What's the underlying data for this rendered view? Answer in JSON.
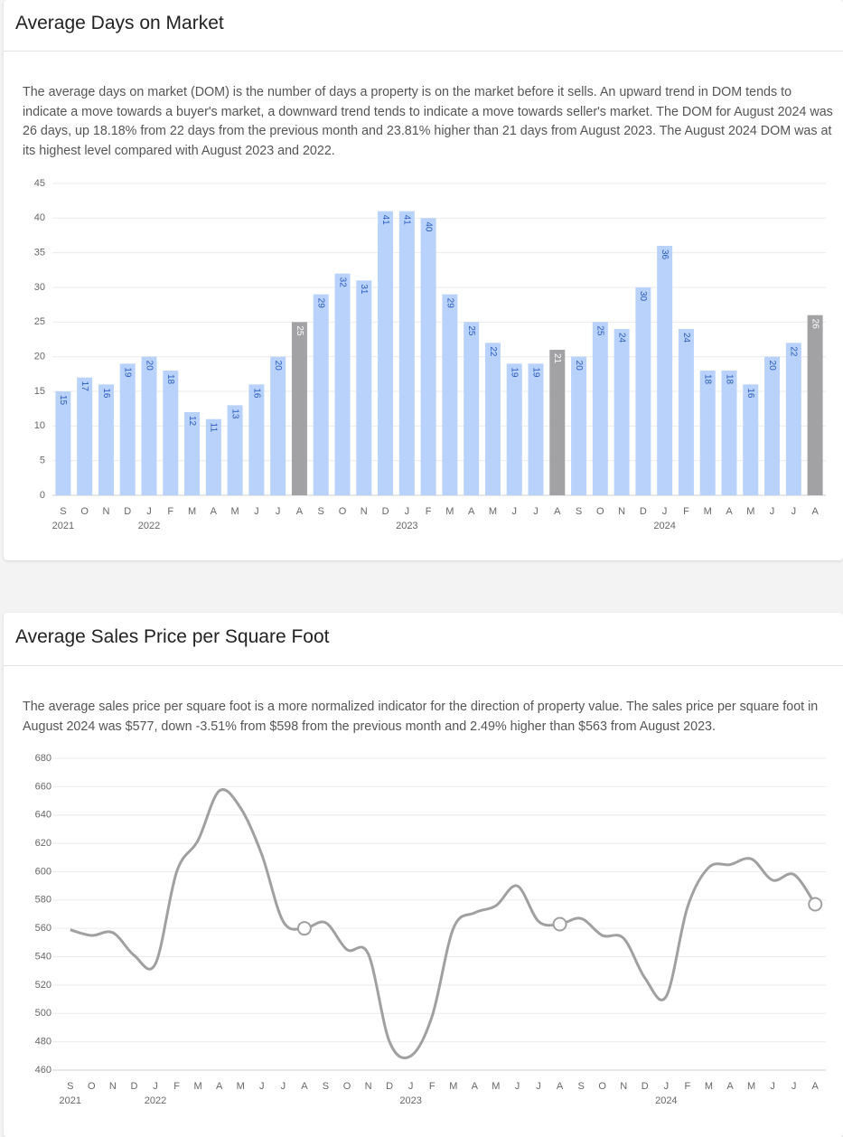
{
  "chart_data": [
    {
      "type": "bar",
      "title": "Average Days on Market",
      "description": "The average days on market (DOM) is the number of days a property is on the market before it sells. An upward trend in DOM tends to indicate a move towards a buyer's market, a downward trend tends to indicate a move towards seller's market. The DOM for August 2024 was 26 days, up 18.18% from 22 days from the previous month and 23.81% higher than 21 days from August 2023. The August 2024 DOM was at its highest level compared with August 2023 and 2022.",
      "categories": [
        "S",
        "O",
        "N",
        "D",
        "J",
        "F",
        "M",
        "A",
        "M",
        "J",
        "J",
        "A",
        "S",
        "O",
        "N",
        "D",
        "J",
        "F",
        "M",
        "A",
        "M",
        "J",
        "J",
        "A",
        "S",
        "O",
        "N",
        "D",
        "J",
        "F",
        "M",
        "A",
        "M",
        "J",
        "J",
        "A"
      ],
      "years": [
        "2021",
        null,
        null,
        null,
        "2022",
        null,
        null,
        null,
        null,
        null,
        null,
        null,
        null,
        null,
        null,
        null,
        "2023",
        null,
        null,
        null,
        null,
        null,
        null,
        null,
        null,
        null,
        null,
        null,
        "2024",
        null,
        null,
        null,
        null,
        null,
        null,
        null
      ],
      "values": [
        15,
        17,
        16,
        19,
        20,
        18,
        12,
        11,
        13,
        16,
        20,
        25,
        29,
        32,
        31,
        41,
        41,
        40,
        29,
        25,
        22,
        19,
        19,
        21,
        20,
        25,
        24,
        30,
        36,
        24,
        18,
        18,
        16,
        20,
        22,
        26
      ],
      "colors": [
        "#b8d2fb",
        "#b8d2fb",
        "#b8d2fb",
        "#b8d2fb",
        "#b8d2fb",
        "#b8d2fb",
        "#b8d2fb",
        "#b8d2fb",
        "#b8d2fb",
        "#b8d2fb",
        "#b8d2fb",
        "#a2a2a5",
        "#b8d2fb",
        "#b8d2fb",
        "#b8d2fb",
        "#b8d2fb",
        "#b8d2fb",
        "#b8d2fb",
        "#b8d2fb",
        "#b8d2fb",
        "#b8d2fb",
        "#b8d2fb",
        "#b8d2fb",
        "#a2a2a5",
        "#b8d2fb",
        "#b8d2fb",
        "#b8d2fb",
        "#b8d2fb",
        "#b8d2fb",
        "#b8d2fb",
        "#b8d2fb",
        "#b8d2fb",
        "#b8d2fb",
        "#b8d2fb",
        "#b8d2fb",
        "#a2a2a5"
      ],
      "ylim": [
        0,
        45
      ],
      "yticks": [
        0,
        5,
        10,
        15,
        20,
        25,
        30,
        35,
        40,
        45
      ],
      "grid": true
    },
    {
      "type": "line",
      "title": "Average Sales Price per Square Foot",
      "description": "The average sales price per square foot is a more normalized indicator for the direction of property value. The sales price per square foot in August 2024 was $577, down -3.51% from $598 from the previous month and 2.49% higher than $563 from August 2023.",
      "categories": [
        "S",
        "O",
        "N",
        "D",
        "J",
        "F",
        "M",
        "A",
        "M",
        "J",
        "J",
        "A",
        "S",
        "O",
        "N",
        "D",
        "J",
        "F",
        "M",
        "A",
        "M",
        "J",
        "J",
        "A",
        "S",
        "O",
        "N",
        "D",
        "J",
        "F",
        "M",
        "A",
        "M",
        "J",
        "J",
        "A"
      ],
      "years": [
        "2021",
        null,
        null,
        null,
        "2022",
        null,
        null,
        null,
        null,
        null,
        null,
        null,
        null,
        null,
        null,
        null,
        "2023",
        null,
        null,
        null,
        null,
        null,
        null,
        null,
        null,
        null,
        null,
        null,
        "2024",
        null,
        null,
        null,
        null,
        null,
        null,
        null
      ],
      "values": [
        559,
        555,
        557,
        541,
        535,
        600,
        622,
        657,
        645,
        612,
        565,
        560,
        564,
        545,
        542,
        480,
        470,
        498,
        560,
        571,
        576,
        590,
        565,
        563,
        567,
        555,
        553,
        525,
        512,
        575,
        603,
        605,
        609,
        594,
        598,
        577
      ],
      "markers": [
        false,
        false,
        false,
        false,
        false,
        false,
        false,
        false,
        false,
        false,
        false,
        true,
        false,
        false,
        false,
        false,
        false,
        false,
        false,
        false,
        false,
        false,
        false,
        true,
        false,
        false,
        false,
        false,
        false,
        false,
        false,
        false,
        false,
        false,
        false,
        true
      ],
      "color": "#a0a0a0",
      "ylim": [
        460,
        680
      ],
      "yticks": [
        460,
        480,
        500,
        520,
        540,
        560,
        580,
        600,
        620,
        640,
        660,
        680
      ],
      "grid": true
    }
  ]
}
